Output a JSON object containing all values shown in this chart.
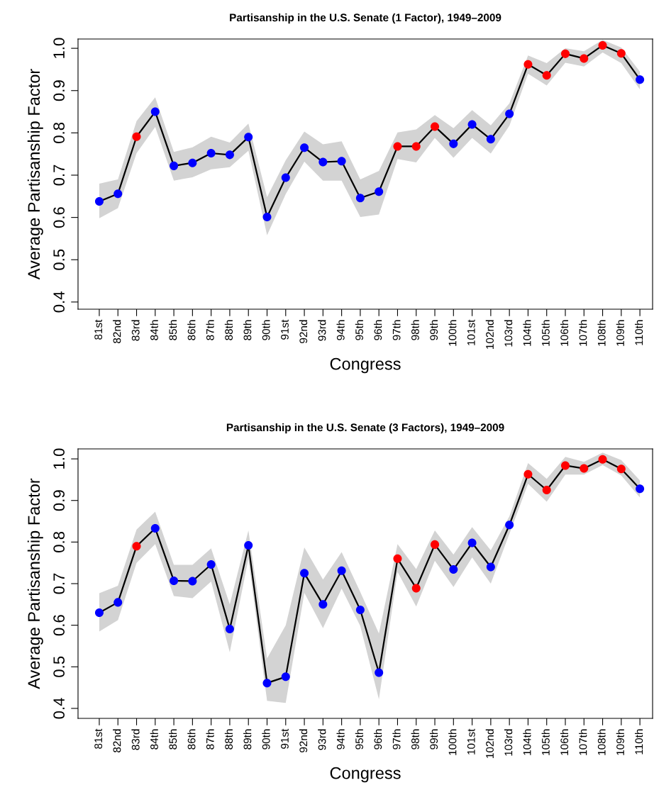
{
  "chart_data": [
    {
      "type": "line",
      "title": "Partisanship in the U.S. Senate (1 Factor), 1949–2009",
      "xlabel": "Congress",
      "ylabel": "Average Partisanship Factor",
      "categories": [
        "81st",
        "82nd",
        "83rd",
        "84th",
        "85th",
        "86th",
        "87th",
        "88th",
        "89th",
        "90th",
        "91st",
        "92nd",
        "93rd",
        "94th",
        "95th",
        "96th",
        "97th",
        "98th",
        "99th",
        "100th",
        "101st",
        "102nd",
        "103rd",
        "104th",
        "105th",
        "106th",
        "107th",
        "108th",
        "109th",
        "110th"
      ],
      "ylim": [
        0.383,
        1.022
      ],
      "yticks": [
        0.4,
        0.5,
        0.6,
        0.7,
        0.8,
        0.9,
        {
          "value": 1,
          "label": "1.0"
        }
      ],
      "grid": false,
      "legend": false,
      "marker": "circle",
      "line_style": "solid",
      "series": [
        {
          "color": "#000000",
          "values": [
            0.638,
            0.656,
            0.791,
            0.85,
            0.722,
            0.729,
            0.752,
            0.748,
            0.79,
            0.601,
            0.694,
            0.765,
            0.731,
            0.733,
            0.646,
            0.661,
            0.768,
            0.768,
            0.815,
            0.774,
            0.82,
            0.785,
            0.845,
            0.962,
            0.936,
            0.987,
            0.976,
            1.007,
            0.988,
            0.926
          ],
          "lower": [
            0.598,
            0.622,
            0.752,
            0.814,
            0.687,
            0.695,
            0.714,
            0.719,
            0.758,
            0.558,
            0.655,
            0.732,
            0.687,
            0.687,
            0.601,
            0.607,
            0.738,
            0.73,
            0.788,
            0.741,
            0.788,
            0.751,
            0.817,
            0.94,
            0.912,
            0.966,
            0.957,
            0.99,
            0.965,
            0.903
          ],
          "upper": [
            0.68,
            0.69,
            0.828,
            0.884,
            0.755,
            0.766,
            0.791,
            0.777,
            0.822,
            0.648,
            0.735,
            0.803,
            0.773,
            0.78,
            0.69,
            0.71,
            0.801,
            0.808,
            0.842,
            0.811,
            0.854,
            0.818,
            0.87,
            0.983,
            0.965,
            1.0,
            0.993,
            1.02,
            1.002,
            0.945
          ],
          "colors": [
            "#0000ff",
            "#0000ff",
            "#ff0000",
            "#0000ff",
            "#0000ff",
            "#0000ff",
            "#0000ff",
            "#0000ff",
            "#0000ff",
            "#0000ff",
            "#0000ff",
            "#0000ff",
            "#0000ff",
            "#0000ff",
            "#0000ff",
            "#0000ff",
            "#ff0000",
            "#ff0000",
            "#ff0000",
            "#0000ff",
            "#0000ff",
            "#0000ff",
            "#0000ff",
            "#ff0000",
            "#ff0000",
            "#ff0000",
            "#ff0000",
            "#ff0000",
            "#ff0000",
            "#0000ff"
          ]
        }
      ]
    },
    {
      "type": "line",
      "title": "Partisanship in the U.S. Senate (3 Factors), 1949–2009",
      "xlabel": "Congress",
      "ylabel": "Average Partisanship Factor",
      "categories": [
        "81st",
        "82nd",
        "83rd",
        "84th",
        "85th",
        "86th",
        "87th",
        "88th",
        "89th",
        "90th",
        "91st",
        "92nd",
        "93rd",
        "94th",
        "95th",
        "96th",
        "97th",
        "98th",
        "99th",
        "100th",
        "101st",
        "102nd",
        "103rd",
        "104th",
        "105th",
        "106th",
        "107th",
        "108th",
        "109th",
        "110th"
      ],
      "ylim": [
        0.376,
        1.024
      ],
      "yticks": [
        0.4,
        0.5,
        0.6,
        0.7,
        0.8,
        0.9,
        {
          "value": 1,
          "label": "1.0"
        }
      ],
      "grid": false,
      "legend": false,
      "marker": "circle",
      "line_style": "solid",
      "series": [
        {
          "color": "#000000",
          "values": [
            0.63,
            0.655,
            0.79,
            0.833,
            0.707,
            0.706,
            0.746,
            0.591,
            0.792,
            0.461,
            0.476,
            0.725,
            0.65,
            0.731,
            0.637,
            0.486,
            0.76,
            0.689,
            0.794,
            0.734,
            0.798,
            0.74,
            0.841,
            0.963,
            0.925,
            0.984,
            0.977,
            0.999,
            0.976,
            0.928
          ],
          "lower": [
            0.585,
            0.612,
            0.75,
            0.795,
            0.67,
            0.665,
            0.705,
            0.535,
            0.76,
            0.418,
            0.413,
            0.678,
            0.593,
            0.688,
            0.598,
            0.422,
            0.728,
            0.645,
            0.755,
            0.692,
            0.763,
            0.7,
            0.82,
            0.94,
            0.897,
            0.962,
            0.962,
            0.985,
            0.96,
            0.907
          ],
          "upper": [
            0.677,
            0.695,
            0.83,
            0.873,
            0.745,
            0.745,
            0.785,
            0.65,
            0.828,
            0.52,
            0.6,
            0.787,
            0.71,
            0.776,
            0.68,
            0.58,
            0.795,
            0.735,
            0.828,
            0.77,
            0.836,
            0.78,
            0.862,
            0.99,
            0.952,
            1.005,
            0.993,
            1.015,
            0.997,
            0.948
          ],
          "colors": [
            "#0000ff",
            "#0000ff",
            "#ff0000",
            "#0000ff",
            "#0000ff",
            "#0000ff",
            "#0000ff",
            "#0000ff",
            "#0000ff",
            "#0000ff",
            "#0000ff",
            "#0000ff",
            "#0000ff",
            "#0000ff",
            "#0000ff",
            "#0000ff",
            "#ff0000",
            "#ff0000",
            "#ff0000",
            "#0000ff",
            "#0000ff",
            "#0000ff",
            "#0000ff",
            "#ff0000",
            "#ff0000",
            "#ff0000",
            "#ff0000",
            "#ff0000",
            "#ff0000",
            "#0000ff"
          ]
        }
      ]
    }
  ]
}
